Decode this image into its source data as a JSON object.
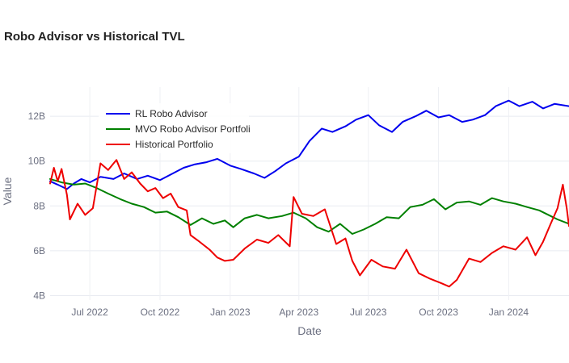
{
  "chart_data": {
    "type": "line",
    "title": "Robo Advisor vs Historical TVL",
    "xlabel": "Date",
    "ylabel": "Value",
    "x_range": [
      "2022-05-10",
      "2024-03-20"
    ],
    "ylim": [
      3800000000,
      13300000000
    ],
    "grid": true,
    "legend_position": "top-left",
    "x_ticks": [
      {
        "date": "2022-07-01",
        "label": "Jul 2022"
      },
      {
        "date": "2022-10-01",
        "label": "Oct 2022"
      },
      {
        "date": "2023-01-01",
        "label": "Jan 2023"
      },
      {
        "date": "2023-04-01",
        "label": "Apr 2023"
      },
      {
        "date": "2023-07-01",
        "label": "Jul 2023"
      },
      {
        "date": "2023-10-01",
        "label": "Oct 2023"
      },
      {
        "date": "2024-01-01",
        "label": "Jan 2024"
      }
    ],
    "y_ticks": [
      {
        "value": 4000000000,
        "label": "4B"
      },
      {
        "value": 6000000000,
        "label": "6B"
      },
      {
        "value": 8000000000,
        "label": "8B"
      },
      {
        "value": 10000000000,
        "label": "10B"
      },
      {
        "value": 12000000000,
        "label": "12B"
      }
    ],
    "series": [
      {
        "name": "RL Robo Advisor",
        "color": "#0000ee",
        "points": [
          [
            "2022-05-10",
            9100000000.0
          ],
          [
            "2022-05-20",
            8950000000.0
          ],
          [
            "2022-06-01",
            8750000000.0
          ],
          [
            "2022-06-10",
            9000000000.0
          ],
          [
            "2022-06-20",
            9200000000.0
          ],
          [
            "2022-07-01",
            9050000000.0
          ],
          [
            "2022-07-15",
            9300000000.0
          ],
          [
            "2022-08-01",
            9200000000.0
          ],
          [
            "2022-08-15",
            9450000000.0
          ],
          [
            "2022-09-01",
            9200000000.0
          ],
          [
            "2022-09-15",
            9350000000.0
          ],
          [
            "2022-10-01",
            9150000000.0
          ],
          [
            "2022-10-15",
            9400000000.0
          ],
          [
            "2022-11-01",
            9700000000.0
          ],
          [
            "2022-11-15",
            9850000000.0
          ],
          [
            "2022-12-01",
            9950000000.0
          ],
          [
            "2022-12-15",
            10100000000.0
          ],
          [
            "2023-01-01",
            9800000000.0
          ],
          [
            "2023-01-15",
            9650000000.0
          ],
          [
            "2023-02-01",
            9450000000.0
          ],
          [
            "2023-02-15",
            9250000000.0
          ],
          [
            "2023-03-01",
            9550000000.0
          ],
          [
            "2023-03-15",
            9900000000.0
          ],
          [
            "2023-04-01",
            10200000000.0
          ],
          [
            "2023-04-15",
            10900000000.0
          ],
          [
            "2023-05-01",
            11450000000.0
          ],
          [
            "2023-05-15",
            11300000000.0
          ],
          [
            "2023-06-01",
            11550000000.0
          ],
          [
            "2023-06-15",
            11850000000.0
          ],
          [
            "2023-07-01",
            12050000000.0
          ],
          [
            "2023-07-15",
            11600000000.0
          ],
          [
            "2023-08-01",
            11300000000.0
          ],
          [
            "2023-08-15",
            11750000000.0
          ],
          [
            "2023-09-01",
            12000000000.0
          ],
          [
            "2023-09-15",
            12250000000.0
          ],
          [
            "2023-10-01",
            11950000000.0
          ],
          [
            "2023-10-15",
            12050000000.0
          ],
          [
            "2023-11-01",
            11750000000.0
          ],
          [
            "2023-11-15",
            11850000000.0
          ],
          [
            "2023-12-01",
            12050000000.0
          ],
          [
            "2023-12-15",
            12450000000.0
          ],
          [
            "2024-01-01",
            12700000000.0
          ],
          [
            "2024-01-15",
            12450000000.0
          ],
          [
            "2024-02-01",
            12650000000.0
          ],
          [
            "2024-02-15",
            12350000000.0
          ],
          [
            "2024-03-01",
            12550000000.0
          ],
          [
            "2024-03-20",
            12450000000.0
          ]
        ]
      },
      {
        "name": "MVO Robo Advisor Portfoli",
        "color": "#008000",
        "points": [
          [
            "2022-05-10",
            9200000000.0
          ],
          [
            "2022-05-25",
            9050000000.0
          ],
          [
            "2022-06-10",
            8950000000.0
          ],
          [
            "2022-06-25",
            9000000000.0
          ],
          [
            "2022-07-10",
            8800000000.0
          ],
          [
            "2022-07-25",
            8550000000.0
          ],
          [
            "2022-08-10",
            8300000000.0
          ],
          [
            "2022-08-25",
            8100000000.0
          ],
          [
            "2022-09-10",
            7950000000.0
          ],
          [
            "2022-09-25",
            7700000000.0
          ],
          [
            "2022-10-10",
            7750000000.0
          ],
          [
            "2022-10-25",
            7500000000.0
          ],
          [
            "2022-11-10",
            7150000000.0
          ],
          [
            "2022-11-25",
            7450000000.0
          ],
          [
            "2022-12-10",
            7200000000.0
          ],
          [
            "2022-12-25",
            7350000000.0
          ],
          [
            "2023-01-05",
            7050000000.0
          ],
          [
            "2023-01-20",
            7450000000.0
          ],
          [
            "2023-02-05",
            7600000000.0
          ],
          [
            "2023-02-20",
            7450000000.0
          ],
          [
            "2023-03-10",
            7550000000.0
          ],
          [
            "2023-03-25",
            7700000000.0
          ],
          [
            "2023-04-10",
            7450000000.0
          ],
          [
            "2023-04-25",
            7050000000.0
          ],
          [
            "2023-05-10",
            6850000000.0
          ],
          [
            "2023-05-25",
            7200000000.0
          ],
          [
            "2023-06-10",
            6750000000.0
          ],
          [
            "2023-06-25",
            6950000000.0
          ],
          [
            "2023-07-10",
            7200000000.0
          ],
          [
            "2023-07-25",
            7500000000.0
          ],
          [
            "2023-08-10",
            7450000000.0
          ],
          [
            "2023-08-25",
            7950000000.0
          ],
          [
            "2023-09-10",
            8050000000.0
          ],
          [
            "2023-09-25",
            8300000000.0
          ],
          [
            "2023-10-10",
            7850000000.0
          ],
          [
            "2023-10-25",
            8150000000.0
          ],
          [
            "2023-11-10",
            8200000000.0
          ],
          [
            "2023-11-25",
            8050000000.0
          ],
          [
            "2023-12-10",
            8350000000.0
          ],
          [
            "2023-12-25",
            8200000000.0
          ],
          [
            "2024-01-10",
            8100000000.0
          ],
          [
            "2024-01-25",
            7950000000.0
          ],
          [
            "2024-02-10",
            7800000000.0
          ],
          [
            "2024-02-25",
            7550000000.0
          ],
          [
            "2024-03-05",
            7400000000.0
          ],
          [
            "2024-03-20",
            7200000000.0
          ]
        ]
      },
      {
        "name": "Historical Portfolio",
        "color": "#ee0000",
        "points": [
          [
            "2022-05-10",
            9000000000.0
          ],
          [
            "2022-05-15",
            9700000000.0
          ],
          [
            "2022-05-20",
            9100000000.0
          ],
          [
            "2022-05-25",
            9650000000.0
          ],
          [
            "2022-06-01",
            8500000000.0
          ],
          [
            "2022-06-05",
            7400000000.0
          ],
          [
            "2022-06-15",
            8100000000.0
          ],
          [
            "2022-06-25",
            7600000000.0
          ],
          [
            "2022-07-05",
            7900000000.0
          ],
          [
            "2022-07-15",
            9900000000.0
          ],
          [
            "2022-07-25",
            9600000000.0
          ],
          [
            "2022-08-05",
            10050000000.0
          ],
          [
            "2022-08-15",
            9200000000.0
          ],
          [
            "2022-08-25",
            9500000000.0
          ],
          [
            "2022-09-05",
            9000000000.0
          ],
          [
            "2022-09-15",
            8650000000.0
          ],
          [
            "2022-09-25",
            8800000000.0
          ],
          [
            "2022-10-05",
            8350000000.0
          ],
          [
            "2022-10-15",
            8550000000.0
          ],
          [
            "2022-10-25",
            7950000000.0
          ],
          [
            "2022-11-05",
            7800000000.0
          ],
          [
            "2022-11-10",
            6700000000.0
          ],
          [
            "2022-11-20",
            6450000000.0
          ],
          [
            "2022-12-05",
            6050000000.0
          ],
          [
            "2022-12-15",
            5700000000.0
          ],
          [
            "2022-12-25",
            5550000000.0
          ],
          [
            "2023-01-05",
            5600000000.0
          ],
          [
            "2023-01-20",
            6100000000.0
          ],
          [
            "2023-02-05",
            6500000000.0
          ],
          [
            "2023-02-20",
            6350000000.0
          ],
          [
            "2023-03-05",
            6700000000.0
          ],
          [
            "2023-03-20",
            6200000000.0
          ],
          [
            "2023-03-25",
            8400000000.0
          ],
          [
            "2023-04-05",
            7650000000.0
          ],
          [
            "2023-04-20",
            7550000000.0
          ],
          [
            "2023-05-05",
            7850000000.0
          ],
          [
            "2023-05-20",
            6300000000.0
          ],
          [
            "2023-06-01",
            6550000000.0
          ],
          [
            "2023-06-10",
            5550000000.0
          ],
          [
            "2023-06-20",
            4900000000.0
          ],
          [
            "2023-07-05",
            5600000000.0
          ],
          [
            "2023-07-20",
            5300000000.0
          ],
          [
            "2023-08-05",
            5200000000.0
          ],
          [
            "2023-08-20",
            6050000000.0
          ],
          [
            "2023-09-05",
            5000000000.0
          ],
          [
            "2023-09-20",
            4750000000.0
          ],
          [
            "2023-10-05",
            4550000000.0
          ],
          [
            "2023-10-15",
            4400000000.0
          ],
          [
            "2023-10-25",
            4700000000.0
          ],
          [
            "2023-11-10",
            5650000000.0
          ],
          [
            "2023-11-25",
            5500000000.0
          ],
          [
            "2023-12-10",
            5900000000.0
          ],
          [
            "2023-12-25",
            6200000000.0
          ],
          [
            "2024-01-10",
            6050000000.0
          ],
          [
            "2024-01-25",
            6600000000.0
          ],
          [
            "2024-02-05",
            5800000000.0
          ],
          [
            "2024-02-15",
            6400000000.0
          ],
          [
            "2024-02-25",
            7200000000.0
          ],
          [
            "2024-03-05",
            7900000000.0
          ],
          [
            "2024-03-12",
            8950000000.0
          ],
          [
            "2024-03-17",
            7900000000.0
          ],
          [
            "2024-03-20",
            7100000000.0
          ]
        ]
      }
    ]
  }
}
